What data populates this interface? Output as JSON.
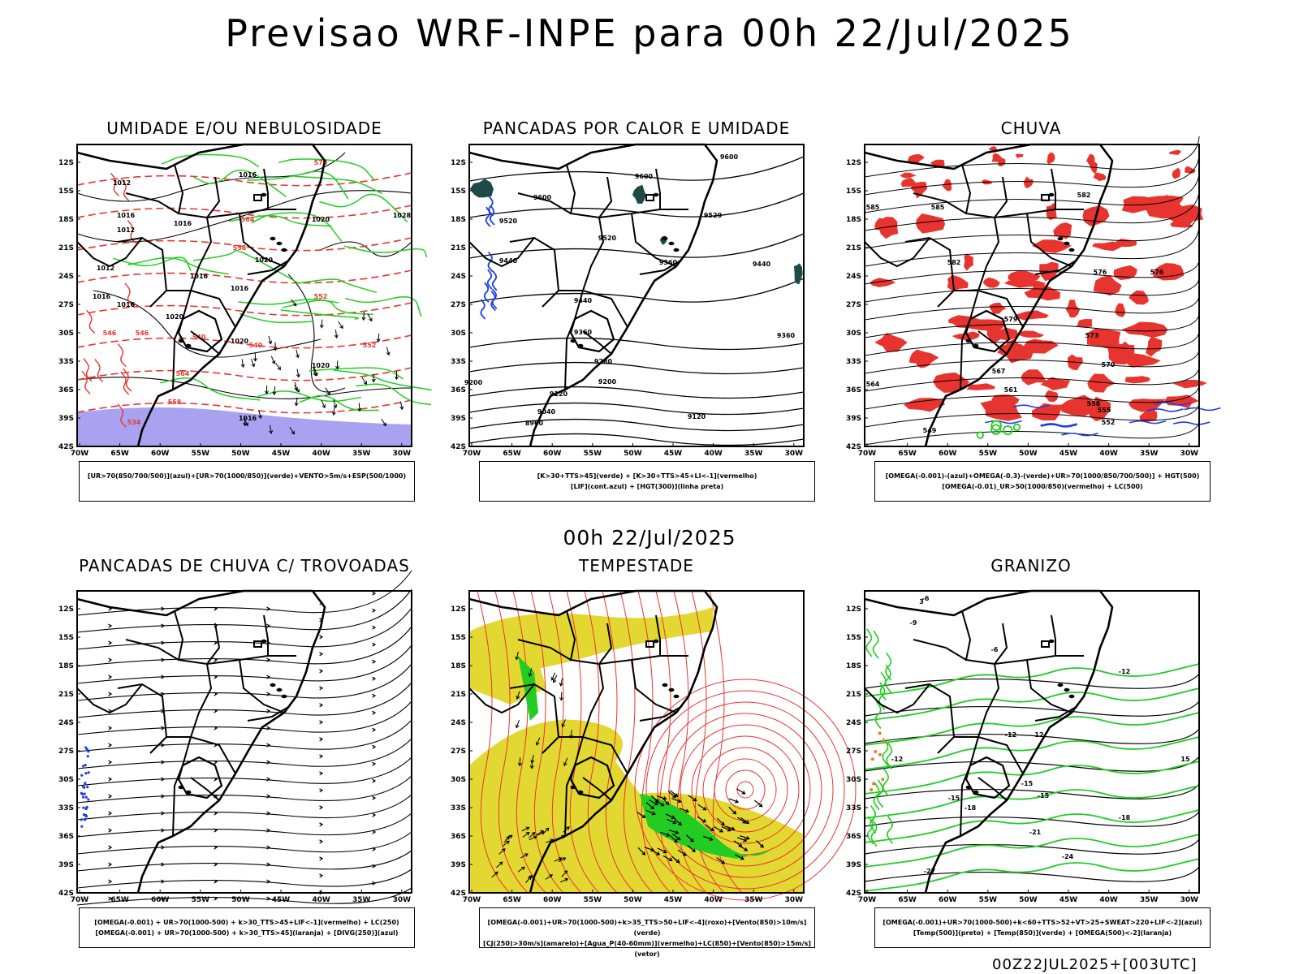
{
  "header": {
    "title": "Previsao WRF-INPE  para 00h 22/Jul/2025"
  },
  "middle_label": "00h 22/Jul/2025",
  "footer_label": "00Z22JUL2025+[003UTC]",
  "axes": {
    "lat_labels": [
      "12S",
      "15S",
      "18S",
      "21S",
      "24S",
      "27S",
      "30S",
      "33S",
      "36S",
      "39S",
      "42S"
    ],
    "lon_labels": [
      "70W",
      "65W",
      "60W",
      "55W",
      "50W",
      "45W",
      "40W",
      "35W",
      "30W"
    ]
  },
  "colors": {
    "red": "#e8342e",
    "green": "#22cc22",
    "blue": "#1f3fe0",
    "lavender": "#a9a2f0",
    "yellow": "#e3d832",
    "darkteal": "#1e4a48",
    "black": "#000000"
  },
  "panels": [
    {
      "id": "umidade",
      "title": "UMIDADE E/OU NEBULOSIDADE",
      "legend": [
        "[UR>70(850/700/500)](azul)+[UR>70(1000/850)](verde)+VENTO>5m/s+ESP(500/1000)"
      ],
      "contour_labels": [
        "1016",
        "1012",
        "1016",
        "1020",
        "1016",
        "1012",
        "1016",
        "1020",
        "1028",
        "1020",
        "1016",
        "1012",
        "1016",
        "1020",
        "1016",
        "1020",
        "1016",
        "570",
        "564",
        "558",
        "552",
        "546",
        "540",
        "564",
        "558",
        "552",
        "546",
        "540",
        "534"
      ]
    },
    {
      "id": "pancadas-calor",
      "title": "PANCADAS POR CALOR E UMIDADE",
      "legend": [
        "[K>30+TTS>45](verde) + [K>30+TTS>45+LI<-1](vermelho)",
        "[LIF](cont.azul) + [HGT(300)](linha preta)"
      ],
      "contour_labels": [
        "9600",
        "9600",
        "9600",
        "9520",
        "9520",
        "9520",
        "9440",
        "9440",
        "9440",
        "9360",
        "9360",
        "9360",
        "9280",
        "9200",
        "9200",
        "9120",
        "9120",
        "9040",
        "8960"
      ]
    },
    {
      "id": "chuva",
      "title": "CHUVA",
      "legend": [
        "[OMEGA(-0.001)-(azul)+OMEGA(-0.3)-(verde)+UR>70(1000/850/700/500)] + HGT(500)",
        "[OMEGA(-0.01)_UR>50(1000/850)(vermelho) + LC(500)"
      ],
      "contour_labels": [
        "585",
        "585",
        "582",
        "582",
        "579",
        "576",
        "576",
        "573",
        "570",
        "567",
        "564",
        "561",
        "558",
        "555",
        "552",
        "549"
      ]
    },
    {
      "id": "pancadas-trovoadas",
      "title": "PANCADAS DE CHUVA C/ TROVOADAS",
      "legend": [
        "[OMEGA(-0.001) + UR>70(1000-500) + k>30_TTS>45+LIF<-1](vermelho) + LC(250)",
        "[OMEGA(-0.001) + UR>70(1000-500) + k>30_TTS>45](laranja) + [DIVG(250)](azul)"
      ],
      "contour_labels": []
    },
    {
      "id": "tempestade",
      "title": "TEMPESTADE",
      "legend": [
        "[OMEGA(-0.001)+UR>70(1000-500)+k>35_TTS>50+LIF<-4](roxo)+[Vento(850)>10m/s](verde)",
        "[CJ(250)>30m/s](amarelo)+[Agua_P(40-60mm)](vermelho)+LC(850)+[Vento(850)>15m/s](vetor)"
      ],
      "contour_labels": []
    },
    {
      "id": "granizo",
      "title": "GRANIZO",
      "legend": [
        "[OMEGA(-0.001)+UR>70(1000-500)+k<60+TTS>52+VT>25+SWEAT>220+LIF<-2](azul)",
        "[Temp(500)](preto) + [Temp(850)](verde) + [OMEGA(500)<-2](laranja)"
      ],
      "contour_labels": [
        "-6",
        "-6",
        "-9",
        "-12",
        "-12",
        "-12",
        "-15",
        "-15",
        "-15",
        "-18",
        "-18",
        "-21",
        "-24",
        "-27",
        "12",
        "15",
        "3"
      ]
    }
  ]
}
